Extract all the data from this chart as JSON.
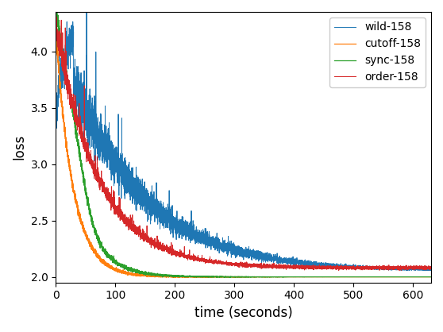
{
  "title": "",
  "xlabel": "time (seconds)",
  "ylabel": "loss",
  "xlim": [
    0,
    630
  ],
  "ylim": [
    1.95,
    4.35
  ],
  "legend_labels": [
    "wild-158",
    "cutoff-158",
    "sync-158",
    "order-158"
  ],
  "colors": {
    "wild": "#1f77b4",
    "cutoff": "#ff7f0e",
    "sync": "#2ca02c",
    "order": "#d62728"
  },
  "seed": 42,
  "duration": 630,
  "n_points": 6300
}
